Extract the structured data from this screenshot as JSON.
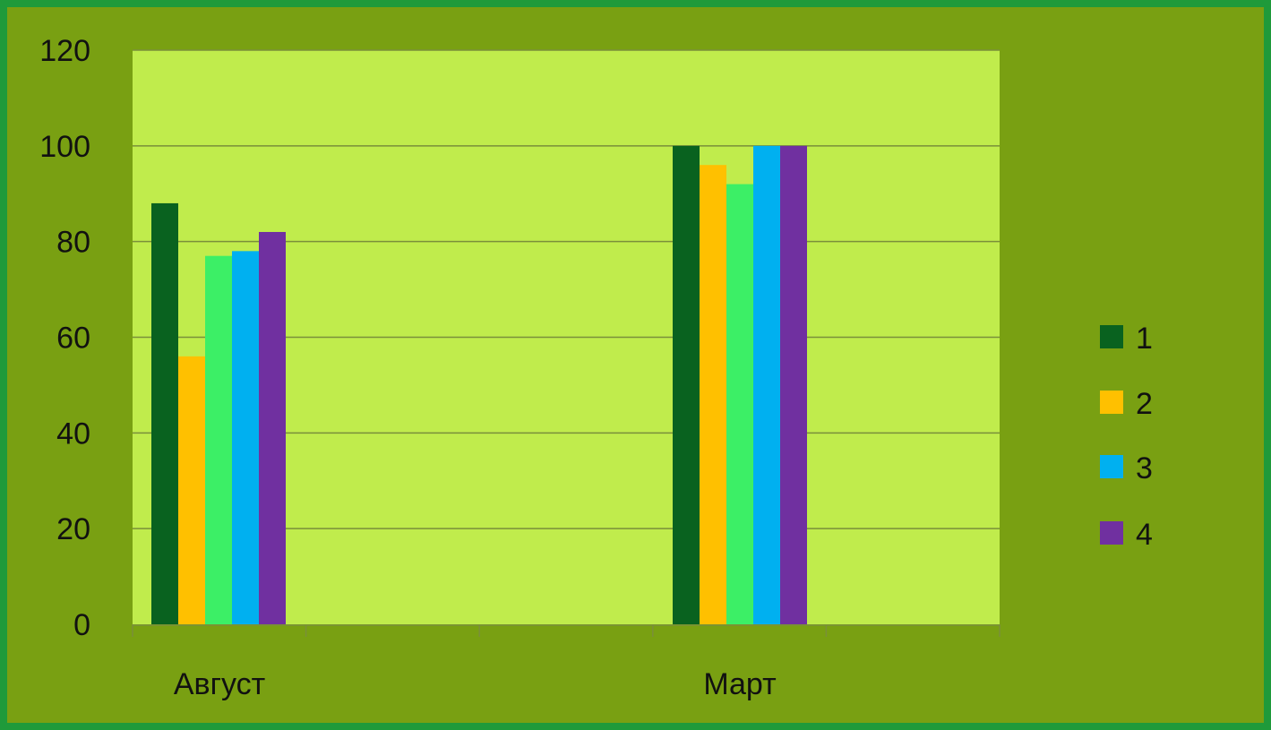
{
  "colors": {
    "frame_border": "#1f9a3a",
    "background": "#79a012",
    "plot_area": "#c0ec4c",
    "gridline": "#7a8f3a"
  },
  "chart_data": {
    "type": "bar",
    "categories": [
      "Август",
      "Март"
    ],
    "series": [
      {
        "name": "1",
        "color": "#09621f",
        "values": [
          88,
          100
        ]
      },
      {
        "name": "2",
        "color": "#ffc000",
        "values": [
          56,
          96
        ]
      },
      {
        "name": "",
        "color": "#3cef66",
        "values": [
          77,
          92
        ]
      },
      {
        "name": "3",
        "color": "#00b0f0",
        "values": [
          78,
          100
        ]
      },
      {
        "name": "4",
        "color": "#7030a0",
        "values": [
          82,
          100
        ]
      }
    ],
    "ylim": [
      0,
      120
    ],
    "yticks": [
      0,
      20,
      40,
      60,
      80,
      100,
      120
    ],
    "ytick_labels": [
      "0",
      "20",
      "40",
      "60",
      "80",
      "100",
      "120"
    ],
    "grid": true,
    "legend_position": "right",
    "legend_entries": [
      {
        "label": "1",
        "color": "#09621f"
      },
      {
        "label": "2",
        "color": "#ffc000"
      },
      {
        "label": "3",
        "color": "#00b0f0"
      },
      {
        "label": "4",
        "color": "#7030a0"
      }
    ],
    "title": "",
    "xlabel": "",
    "ylabel": ""
  }
}
